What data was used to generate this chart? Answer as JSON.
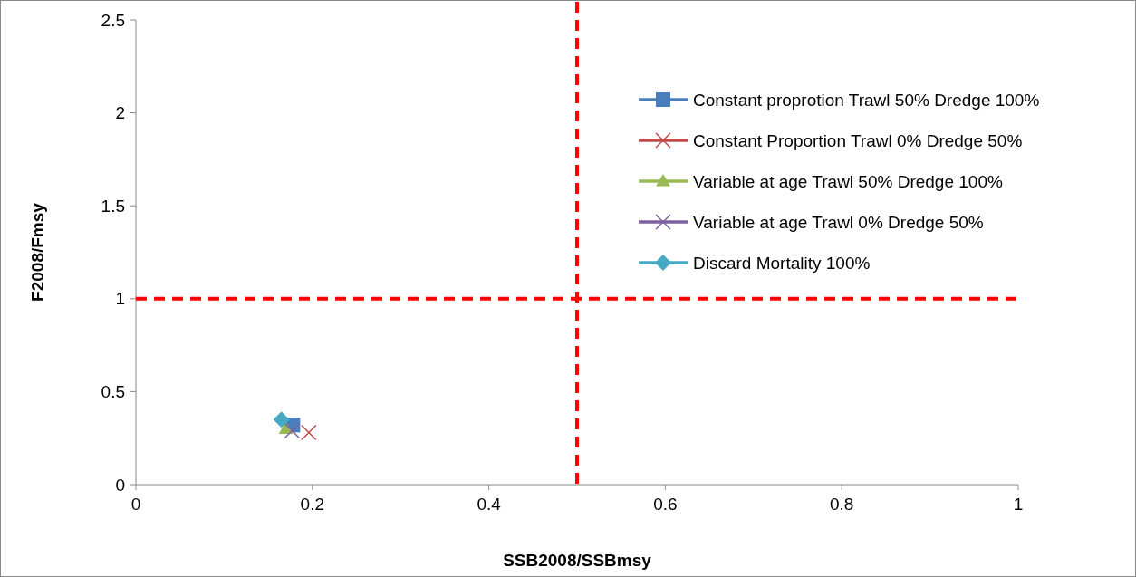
{
  "chart_data": {
    "type": "scatter",
    "xlabel": "SSB2008/SSBmsy",
    "ylabel": "F2008/Fmsy",
    "xlim": [
      0,
      1
    ],
    "xticks": [
      0,
      0.2,
      0.4,
      0.6,
      0.8,
      1
    ],
    "ylim": [
      0,
      2.5
    ],
    "yticks": [
      0,
      0.5,
      1,
      1.5,
      2,
      2.5
    ],
    "grid": false,
    "legend": "top right",
    "series": [
      {
        "name": "Constant proprotion Trawl 50% Dredge 100%",
        "color": "#4a7ebb",
        "marker": "square",
        "x": [
          0.178
        ],
        "values": [
          0.32
        ]
      },
      {
        "name": "Constant Proportion Trawl 0% Dredge 50%",
        "color": "#be4b48",
        "marker": "cross",
        "x": [
          0.196
        ],
        "values": [
          0.28
        ]
      },
      {
        "name": "Variable at age Trawl 50% Dredge 100%",
        "color": "#98b954",
        "marker": "triangle",
        "x": [
          0.17
        ],
        "values": [
          0.3
        ]
      },
      {
        "name": "Variable at age Trawl 0% Dredge 50%",
        "color": "#7d60a0",
        "marker": "cross",
        "x": [
          0.177
        ],
        "values": [
          0.29
        ]
      },
      {
        "name": "Discard Mortality 100%",
        "color": "#46aac5",
        "marker": "diamond",
        "x": [
          0.165
        ],
        "values": [
          0.35
        ]
      }
    ],
    "ref_lines": [
      {
        "axis": "x",
        "value": 0.5,
        "color": "#ff0000",
        "line_style": "dashed"
      },
      {
        "axis": "y",
        "value": 1,
        "color": "#ff0000",
        "line_style": "dashed"
      }
    ]
  }
}
